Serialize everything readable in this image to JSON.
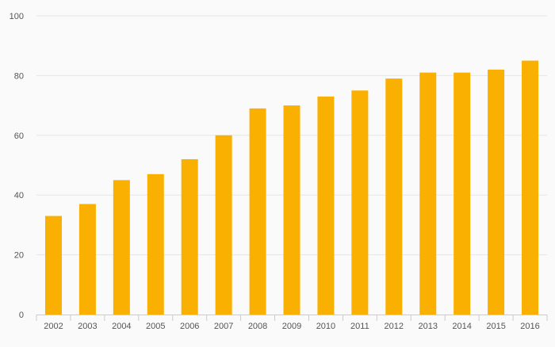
{
  "chart_data": {
    "type": "bar",
    "title": "",
    "xlabel": "",
    "ylabel": "",
    "categories": [
      "2002",
      "2003",
      "2004",
      "2005",
      "2006",
      "2007",
      "2008",
      "2009",
      "2010",
      "2011",
      "2012",
      "2013",
      "2014",
      "2015",
      "2016"
    ],
    "values": [
      33,
      37,
      45,
      47,
      52,
      60,
      69,
      70,
      73,
      75,
      79,
      81,
      81,
      82,
      85
    ],
    "ylim": [
      0,
      100
    ],
    "yticks": [
      0,
      20,
      40,
      60,
      80,
      100
    ],
    "grid": true,
    "colors": {
      "bar": "#f9b000",
      "grid": "#e6e6e6",
      "axis": "#cccccc",
      "background": "#fafafa"
    }
  }
}
